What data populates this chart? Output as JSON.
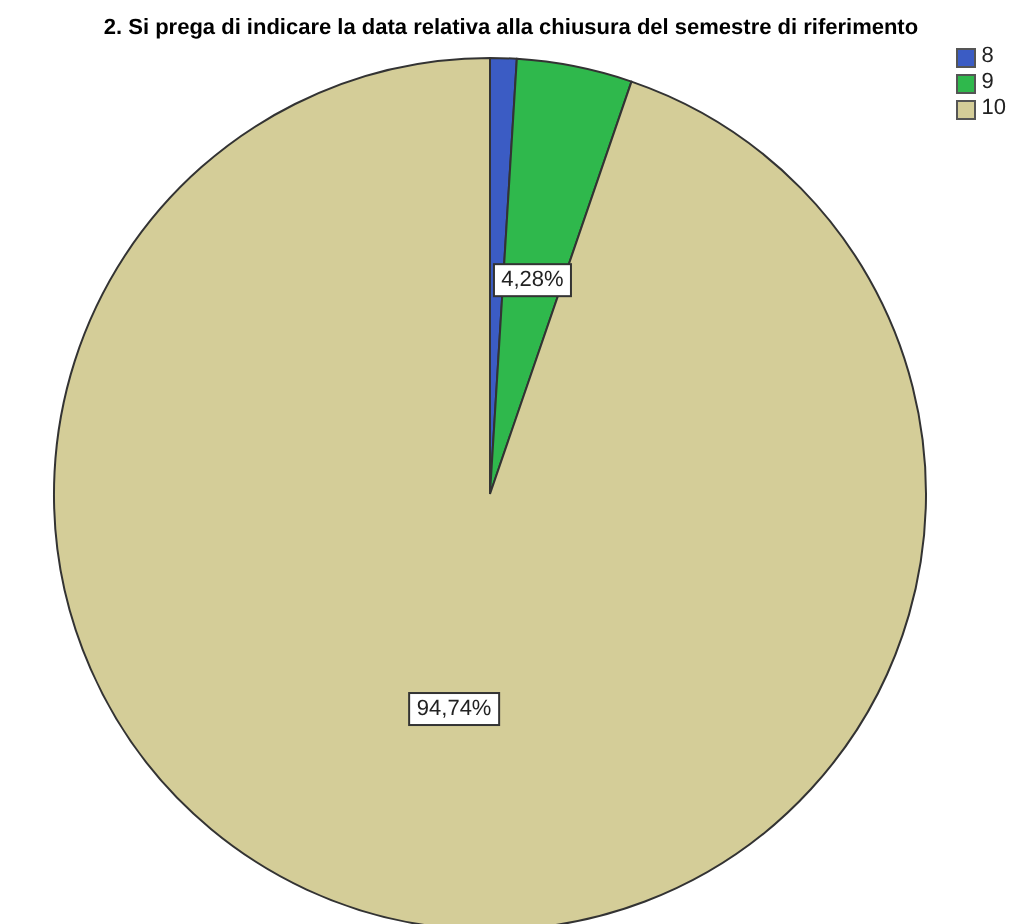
{
  "chart_data": {
    "type": "pie",
    "title": "2. Si prega di indicare la data relativa alla chiusura del semestre di riferimento",
    "categories": [
      "8",
      "9",
      "10"
    ],
    "values": [
      0.98,
      4.28,
      94.74
    ],
    "colors": [
      "#3b5cc4",
      "#2fb84c",
      "#d4cd98"
    ],
    "value_labels": [
      null,
      "4,28%",
      "94,74%"
    ],
    "legend": "top right"
  }
}
